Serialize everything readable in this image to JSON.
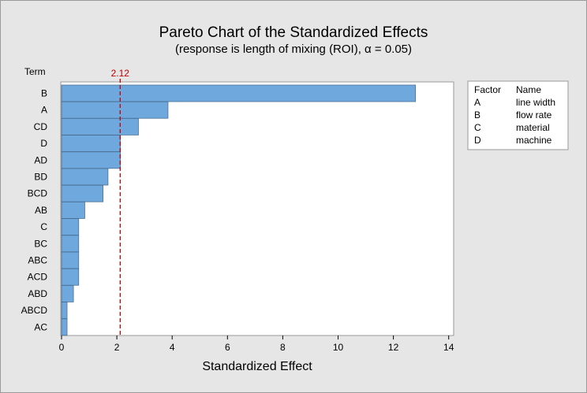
{
  "chart_data": {
    "type": "bar",
    "orientation": "horizontal",
    "title": "Pareto Chart of the Standardized Effects",
    "subtitle": "(response is length of mixing (ROI), α = 0.05)",
    "ylabel": "Term",
    "xlabel": "Standardized Effect",
    "categories": [
      "B",
      "A",
      "CD",
      "D",
      "AD",
      "BD",
      "BCD",
      "AB",
      "C",
      "BC",
      "ABC",
      "ACD",
      "ABD",
      "ABCD",
      "AC"
    ],
    "values": [
      12.8,
      3.85,
      2.78,
      2.13,
      2.13,
      1.68,
      1.5,
      0.84,
      0.62,
      0.62,
      0.62,
      0.62,
      0.43,
      0.2,
      0.2
    ],
    "xlim": [
      0,
      14
    ],
    "xticks": [
      0,
      2,
      4,
      6,
      8,
      10,
      12,
      14
    ],
    "reference_line": {
      "value": 2.12,
      "label": "2.12",
      "color": "#c00000"
    },
    "bar_color": "#6fa8dc",
    "grid": false,
    "legend": {
      "placement": "right",
      "header": [
        "Factor",
        "Name"
      ],
      "rows": [
        {
          "factor": "A",
          "name": "line width"
        },
        {
          "factor": "B",
          "name": "flow rate"
        },
        {
          "factor": "C",
          "name": "material"
        },
        {
          "factor": "D",
          "name": "machine"
        }
      ]
    }
  }
}
